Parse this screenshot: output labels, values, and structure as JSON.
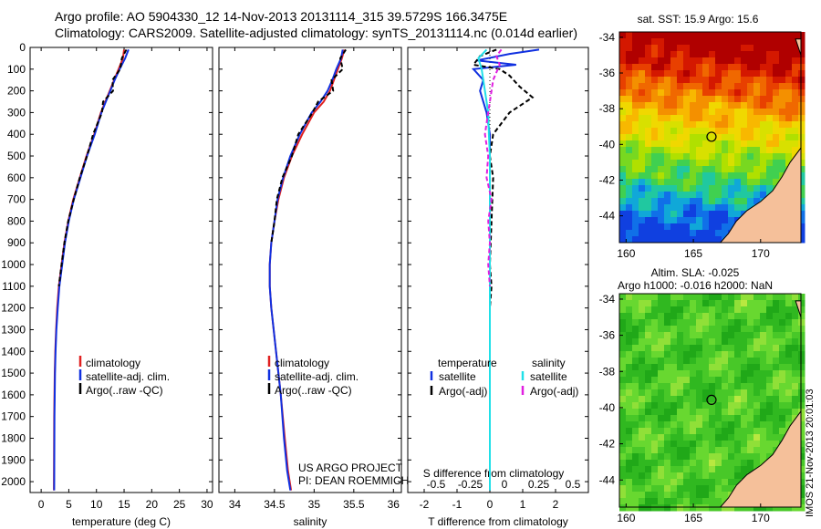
{
  "header": {
    "line1": "Argo profile: AO 5904330_12 14-Nov-2013 20131114_315 39.5729S 166.3475E",
    "line2": "Climatology: CARS2009. Satellite-adjusted climatology: synTS_20131114.nc (0.014d earlier)"
  },
  "colors": {
    "climatology": "#e02020",
    "satellite": "#1030e0",
    "argo": "#000000",
    "salinity_satellite": "#20e0e8",
    "salinity_argo": "#e020e0",
    "land": "#f5c09a"
  },
  "side_credit": "IMOS 21-Nov-2013 20:01:03",
  "chart_data": [
    {
      "type": "line",
      "xlabel": "temperature (deg C)",
      "xticks": [
        0,
        5,
        10,
        15,
        20,
        25,
        30
      ],
      "xlim": [
        -2,
        31
      ],
      "ylim": [
        0,
        2050
      ],
      "yticks": [
        0,
        100,
        200,
        300,
        400,
        500,
        600,
        700,
        800,
        900,
        1000,
        1100,
        1200,
        1300,
        1400,
        1500,
        1600,
        1700,
        1800,
        1900,
        2000
      ],
      "legend": [
        "climatology",
        "satellite-adj. clim.",
        "Argo(..raw -QC)"
      ],
      "series": [
        {
          "name": "climatology",
          "x": [
            15.0,
            14.8,
            14.0,
            13.2,
            12.4,
            11.6,
            10.8,
            9.6,
            8.2,
            7.0,
            5.8,
            4.9,
            4.2,
            3.7,
            3.2,
            2.9,
            2.7,
            2.55,
            2.45,
            2.35,
            2.3
          ],
          "y": [
            10,
            50,
            100,
            150,
            200,
            250,
            300,
            400,
            500,
            600,
            700,
            800,
            900,
            1000,
            1100,
            1200,
            1300,
            1400,
            1500,
            1700,
            2040
          ]
        },
        {
          "name": "satellite-adj. clim.",
          "x": [
            15.8,
            15.2,
            14.2,
            13.3,
            12.5,
            11.7,
            10.9,
            9.7,
            8.3,
            7.1,
            5.9,
            5.0,
            4.3,
            3.8,
            3.3,
            3.0,
            2.75,
            2.6,
            2.5,
            2.4,
            2.35
          ],
          "y": [
            10,
            50,
            100,
            150,
            200,
            250,
            300,
            400,
            500,
            600,
            700,
            800,
            900,
            1000,
            1100,
            1200,
            1300,
            1400,
            1500,
            1700,
            2040
          ]
        },
        {
          "name": "Argo(..raw -QC)",
          "x": [
            15.4,
            14.6,
            14.3,
            12.9,
            13.0,
            11.2,
            11.0,
            9.4,
            8.3,
            7.0,
            5.9,
            4.9,
            4.2,
            3.7,
            3.2
          ],
          "y": [
            10,
            50,
            100,
            150,
            200,
            250,
            300,
            400,
            500,
            600,
            700,
            800,
            900,
            1000,
            1100
          ]
        }
      ]
    },
    {
      "type": "line",
      "xlabel": "salinity",
      "xticks": [
        34,
        34.5,
        35,
        35.5,
        36
      ],
      "xlim": [
        33.8,
        36.1
      ],
      "ylim": [
        0,
        2050
      ],
      "legend": [
        "climatology",
        "satellite-adj. clim.",
        "Argo(..raw -QC)"
      ],
      "annotation": [
        "US ARGO PROJECT",
        "PI: DEAN ROEMMICH"
      ],
      "series": [
        {
          "name": "climatology",
          "x": [
            35.38,
            35.35,
            35.3,
            35.25,
            35.2,
            35.12,
            35.0,
            34.85,
            34.72,
            34.62,
            34.55,
            34.5,
            34.46,
            34.44,
            34.44,
            34.46,
            34.52,
            34.58,
            34.63,
            34.67,
            34.71
          ],
          "y": [
            10,
            50,
            100,
            150,
            200,
            250,
            300,
            400,
            500,
            600,
            700,
            800,
            900,
            1000,
            1100,
            1200,
            1400,
            1600,
            1800,
            1950,
            2040
          ]
        },
        {
          "name": "satellite-adj. clim.",
          "x": [
            35.36,
            35.34,
            35.28,
            35.23,
            35.17,
            35.08,
            34.97,
            34.82,
            34.7,
            34.61,
            34.54,
            34.5,
            34.46,
            34.44,
            34.44,
            34.46,
            34.52,
            34.58,
            34.62,
            34.66,
            34.7
          ],
          "y": [
            10,
            50,
            100,
            150,
            200,
            250,
            300,
            400,
            500,
            600,
            700,
            800,
            900,
            1000,
            1100,
            1200,
            1400,
            1600,
            1800,
            1950,
            2040
          ]
        },
        {
          "name": "Argo(..raw -QC)",
          "x": [
            35.4,
            35.33,
            35.36,
            35.22,
            35.24,
            35.05,
            34.98,
            34.8,
            34.72,
            34.6,
            34.53,
            34.5,
            34.46
          ],
          "y": [
            10,
            50,
            100,
            150,
            200,
            250,
            300,
            400,
            500,
            600,
            700,
            800,
            900
          ]
        }
      ]
    },
    {
      "type": "line",
      "xlabel": "T difference from climatology",
      "xlabel2": "S difference from climatology",
      "xticks": [
        -2,
        -1,
        0,
        1,
        2
      ],
      "xticks2": [
        "-0.5",
        "-0.25",
        "0",
        "0.25",
        "0.5"
      ],
      "xlim": [
        -2.5,
        3
      ],
      "ylim": [
        0,
        2050
      ],
      "legend_titles": [
        "temperature",
        "salinity"
      ],
      "legend": [
        "satellite",
        "Argo(-adj)",
        "satellite",
        "Argo(-adj)"
      ],
      "series": [
        {
          "name": "satellite",
          "x": [
            1.5,
            0.6,
            -0.4,
            0.8,
            -0.5,
            -0.2,
            -0.3,
            -0.1,
            0.0,
            0.0,
            0.0,
            0.0,
            0.0,
            0.0,
            0.0,
            0.0
          ],
          "y": [
            10,
            30,
            60,
            80,
            100,
            150,
            200,
            300,
            400,
            600,
            800,
            1000,
            1200,
            1500,
            1800,
            2040
          ]
        },
        {
          "name": "Argo(-adj)",
          "x": [
            0.2,
            -0.3,
            -0.5,
            0.3,
            0.6,
            0.9,
            1.3,
            0.6,
            0.1,
            0.0,
            0.1,
            0.05,
            0.0,
            0.05,
            0.0
          ],
          "y": [
            10,
            40,
            80,
            100,
            130,
            180,
            230,
            300,
            400,
            500,
            600,
            800,
            1000,
            1100,
            1200
          ]
        },
        {
          "name": "satellite",
          "x": [
            -0.1,
            -0.35,
            -0.25,
            -0.2,
            -0.15,
            -0.1,
            -0.05,
            -0.03,
            0.0,
            0.0,
            0.0,
            0.0,
            0.0,
            0.0,
            0.0
          ],
          "y": [
            10,
            50,
            100,
            150,
            200,
            250,
            300,
            400,
            500,
            700,
            900,
            1200,
            1500,
            1800,
            2040
          ]
        },
        {
          "name": "Argo(-adj)",
          "x": [
            0.35,
            0.2,
            0.3,
            0.1,
            0.0,
            -0.15,
            -0.05,
            -0.1,
            0.05,
            -0.05,
            0.0,
            -0.05,
            0.0
          ],
          "y": [
            10,
            40,
            80,
            150,
            250,
            400,
            500,
            600,
            700,
            800,
            900,
            1000,
            1100
          ]
        }
      ]
    },
    {
      "type": "heatmap",
      "title": "sat. SST: 15.9 Argo: 15.6",
      "xticks": [
        160,
        165,
        170
      ],
      "yticks": [
        -34,
        -36,
        -38,
        -40,
        -42,
        -44
      ],
      "xlim": [
        159.5,
        173
      ],
      "ylim": [
        -45.5,
        -33.7
      ],
      "marker": [
        166.35,
        -39.57
      ]
    },
    {
      "type": "heatmap",
      "title": "Altim. SLA: -0.025",
      "subtitle": "Argo h1000: -0.016 h2000: NaN",
      "xticks": [
        160,
        165,
        170
      ],
      "yticks": [
        -34,
        -36,
        -38,
        -40,
        -42,
        -44
      ],
      "xlim": [
        159.5,
        173
      ],
      "ylim": [
        -45.5,
        -33.7
      ],
      "marker": [
        166.35,
        -39.57
      ]
    }
  ]
}
